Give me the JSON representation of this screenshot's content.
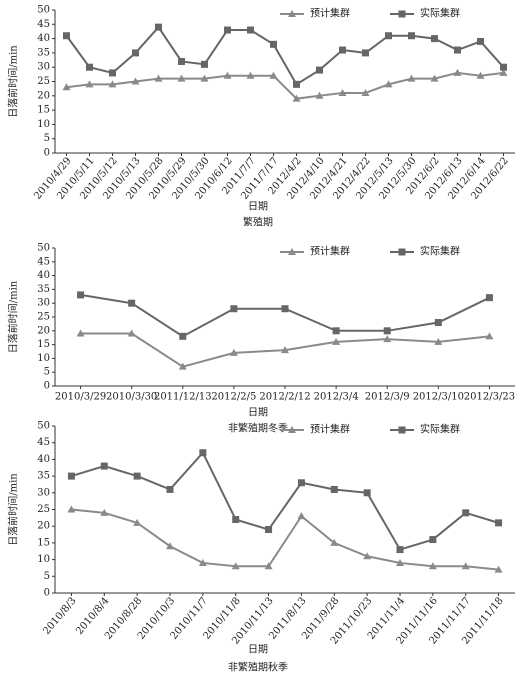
{
  "chart_data": [
    {
      "type": "line",
      "title": "繁殖期",
      "xlabel": "日期",
      "ylabel": "日落前时间/min",
      "categories": [
        "2010/4/29",
        "2010/5/11",
        "2010/5/12",
        "2010/5/13",
        "2010/5/28",
        "2010/5/29",
        "2010/5/30",
        "2010/6/12",
        "2011/7/7",
        "2011/7/17",
        "2012/4/2",
        "2012/4/10",
        "2012/4/21",
        "2012/4/22",
        "2012/5/13",
        "2012/5/30",
        "2012/6/2",
        "2012/6/13",
        "2012/6/14",
        "2012/6/22"
      ],
      "series": [
        {
          "name": "预计集群",
          "color": "#8a8a8a",
          "marker": "triangle",
          "values": [
            23,
            24,
            24,
            25,
            26,
            26,
            26,
            27,
            27,
            27,
            19,
            20,
            21,
            21,
            24,
            26,
            26,
            28,
            27,
            28
          ]
        },
        {
          "name": "实际集群",
          "color": "#666666",
          "marker": "square",
          "values": [
            41,
            30,
            28,
            35,
            44,
            32,
            31,
            43,
            43,
            38,
            24,
            29,
            36,
            35,
            41,
            41,
            40,
            36,
            39,
            30
          ]
        }
      ],
      "ylim": [
        0,
        50
      ],
      "yticks": [
        0,
        5,
        10,
        15,
        20,
        25,
        30,
        35,
        40,
        45,
        50
      ],
      "legend": "top-right"
    },
    {
      "type": "line",
      "title": "非繁殖期冬季",
      "xlabel": "日期",
      "ylabel": "日落前时间/min",
      "categories": [
        "2010/3/29",
        "2010/3/30",
        "2011/12/13",
        "2012/2/5",
        "2012/2/12",
        "2012/3/4",
        "2012/3/9",
        "2012/3/10",
        "2012/3/23"
      ],
      "series": [
        {
          "name": "预计集群",
          "color": "#8a8a8a",
          "marker": "triangle",
          "values": [
            19,
            19,
            7,
            12,
            13,
            16,
            17,
            16,
            18
          ]
        },
        {
          "name": "实际集群",
          "color": "#666666",
          "marker": "square",
          "values": [
            33,
            30,
            18,
            28,
            28,
            20,
            20,
            23,
            32
          ]
        }
      ],
      "ylim": [
        0,
        50
      ],
      "yticks": [
        0,
        5,
        10,
        15,
        20,
        25,
        30,
        35,
        40,
        45,
        50
      ],
      "legend": "top-right"
    },
    {
      "type": "line",
      "title": "非繁殖期秋季",
      "xlabel": "日期",
      "ylabel": "日落前时间/min",
      "categories": [
        "2010/8/3",
        "2010/8/4",
        "2010/8/28",
        "2010/10/3",
        "2010/11/7",
        "2010/11/8",
        "2010/11/13",
        "2011/8/13",
        "2011/9/28",
        "2011/10/23",
        "2011/11/4",
        "2011/11/16",
        "2011/11/17",
        "2011/11/18"
      ],
      "series": [
        {
          "name": "预计集群",
          "color": "#8a8a8a",
          "marker": "triangle",
          "values": [
            25,
            24,
            21,
            14,
            9,
            8,
            8,
            23,
            15,
            11,
            9,
            8,
            8,
            7
          ]
        },
        {
          "name": "实际集群",
          "color": "#666666",
          "marker": "square",
          "values": [
            35,
            38,
            35,
            31,
            42,
            22,
            19,
            33,
            31,
            30,
            13,
            16,
            24,
            21
          ]
        }
      ],
      "ylim": [
        0,
        50
      ],
      "yticks": [
        0,
        5,
        10,
        15,
        20,
        25,
        30,
        35,
        40,
        45,
        50
      ],
      "legend": "top-right"
    }
  ]
}
